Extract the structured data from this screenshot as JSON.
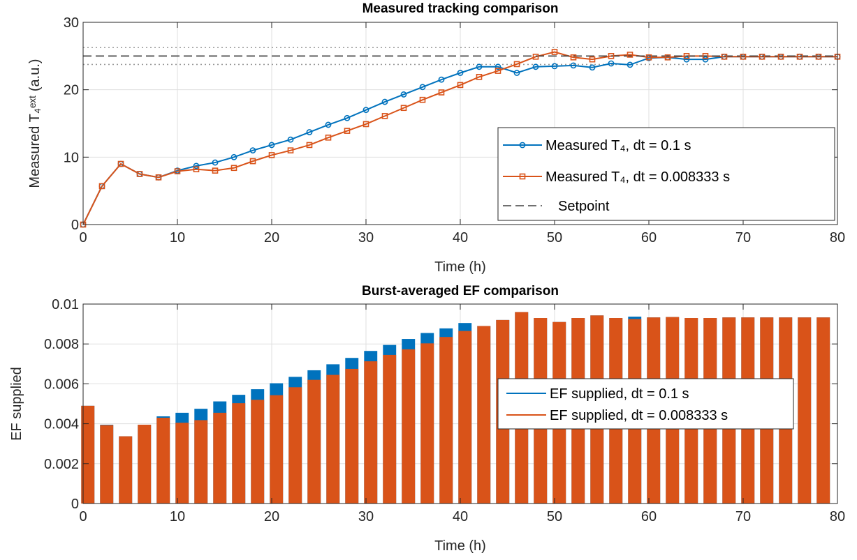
{
  "colors": {
    "series_dt_0_1": "#0072bd",
    "series_dt_0_008333": "#d95319",
    "setpoint": "#404040",
    "band": "#9a9a9a"
  },
  "chart_data": [
    {
      "type": "line",
      "title": "Measured tracking comparison",
      "xlabel": "Time (h)",
      "ylabel": "Measured T₄ᵉˣᵗ (a.u.)",
      "xlim": [
        0,
        80
      ],
      "ylim": [
        0,
        30
      ],
      "xticks": [
        "0",
        "10",
        "20",
        "30",
        "40",
        "50",
        "60",
        "70",
        "80"
      ],
      "yticks": [
        "0",
        "10",
        "20",
        "30"
      ],
      "grid": true,
      "legend_position": "right-center",
      "x": [
        0,
        2,
        4,
        6,
        8,
        10,
        12,
        14,
        16,
        18,
        20,
        22,
        24,
        26,
        28,
        30,
        32,
        34,
        36,
        38,
        40,
        42,
        44,
        46,
        48,
        50,
        52,
        54,
        56,
        58,
        60,
        62,
        64,
        66,
        68,
        70,
        72,
        74,
        76,
        78,
        80
      ],
      "series": [
        {
          "name": "Measured T₄, dt = 0.1 s",
          "marker": "circle",
          "values": [
            0,
            5.7,
            9.0,
            7.5,
            7.0,
            8.0,
            8.7,
            9.2,
            10.0,
            11.0,
            11.8,
            12.6,
            13.7,
            14.8,
            15.8,
            17.0,
            18.2,
            19.3,
            20.4,
            21.5,
            22.5,
            23.4,
            23.4,
            22.5,
            23.4,
            23.5,
            23.6,
            23.3,
            23.9,
            23.7,
            24.7,
            24.8,
            24.5,
            24.5,
            24.9,
            24.9,
            24.9,
            24.9,
            24.9,
            24.9,
            24.9
          ]
        },
        {
          "name": "Measured T₄, dt = 0.008333 s",
          "marker": "square",
          "values": [
            0,
            5.7,
            9.0,
            7.5,
            7.0,
            7.9,
            8.2,
            8.0,
            8.4,
            9.4,
            10.3,
            11.0,
            11.8,
            12.9,
            13.9,
            14.9,
            16.1,
            17.3,
            18.5,
            19.6,
            20.7,
            21.9,
            22.8,
            23.8,
            24.9,
            25.6,
            24.8,
            24.5,
            25.0,
            25.2,
            24.8,
            24.8,
            25.0,
            25.0,
            24.9,
            24.9,
            24.9,
            24.9,
            24.9,
            24.9,
            24.9
          ]
        },
        {
          "name": "Setpoint",
          "style": "dashed",
          "values": [
            25,
            25,
            25,
            25,
            25,
            25,
            25,
            25,
            25,
            25,
            25,
            25,
            25,
            25,
            25,
            25,
            25,
            25,
            25,
            25,
            25,
            25,
            25,
            25,
            25,
            25,
            25,
            25,
            25,
            25,
            25,
            25,
            25,
            25,
            25,
            25,
            25,
            25,
            25,
            25,
            25
          ]
        }
      ],
      "tolerance_band": [
        23.75,
        26.25
      ]
    },
    {
      "type": "bar",
      "title": "Burst-averaged EF comparison",
      "xlabel": "Time (h)",
      "ylabel": "EF supplied",
      "xlim": [
        0,
        80
      ],
      "ylim": [
        0,
        0.01
      ],
      "xticks": [
        "0",
        "10",
        "20",
        "30",
        "40",
        "50",
        "60",
        "70",
        "80"
      ],
      "yticks": [
        "0",
        "0.002",
        "0.004",
        "0.006",
        "0.008",
        "0.01"
      ],
      "grid": true,
      "legend_position": "right-center",
      "x": [
        0.5,
        2.5,
        4.5,
        6.5,
        8.5,
        10.5,
        12.5,
        14.5,
        16.5,
        18.5,
        20.5,
        22.5,
        24.5,
        26.5,
        28.5,
        30.5,
        32.5,
        34.5,
        36.5,
        38.5,
        40.5,
        42.5,
        44.5,
        46.5,
        48.5,
        50.5,
        52.5,
        54.5,
        56.5,
        58.5,
        60.5,
        62.5,
        64.5,
        66.5,
        68.5,
        70.5,
        72.5,
        74.5,
        76.5,
        78.5
      ],
      "series": [
        {
          "name": "EF supplied, dt = 0.1 s",
          "values": [
            0.0049,
            0.00395,
            0.00337,
            0.00395,
            0.00437,
            0.00455,
            0.00475,
            0.00512,
            0.00545,
            0.00573,
            0.00603,
            0.00635,
            0.00668,
            0.00698,
            0.0073,
            0.00765,
            0.00795,
            0.00825,
            0.00855,
            0.00878,
            0.00905,
            0.0089,
            0.0092,
            0.0096,
            0.0093,
            0.0091,
            0.0093,
            0.00943,
            0.0093,
            0.00937,
            0.00933,
            0.00935,
            0.0093,
            0.0093,
            0.00933,
            0.00933,
            0.00933,
            0.00933,
            0.00933,
            0.00933
          ]
        },
        {
          "name": "EF supplied, dt = 0.008333 s",
          "values": [
            0.0049,
            0.00393,
            0.00337,
            0.00395,
            0.0043,
            0.00405,
            0.00418,
            0.00455,
            0.00503,
            0.0052,
            0.00543,
            0.00583,
            0.0062,
            0.00645,
            0.00675,
            0.00713,
            0.00745,
            0.00773,
            0.00803,
            0.00835,
            0.00865,
            0.0089,
            0.0092,
            0.0096,
            0.0093,
            0.0091,
            0.0093,
            0.00943,
            0.0093,
            0.00925,
            0.00933,
            0.00935,
            0.0093,
            0.0093,
            0.00933,
            0.00933,
            0.00933,
            0.00933,
            0.00933,
            0.00933
          ]
        }
      ]
    }
  ]
}
